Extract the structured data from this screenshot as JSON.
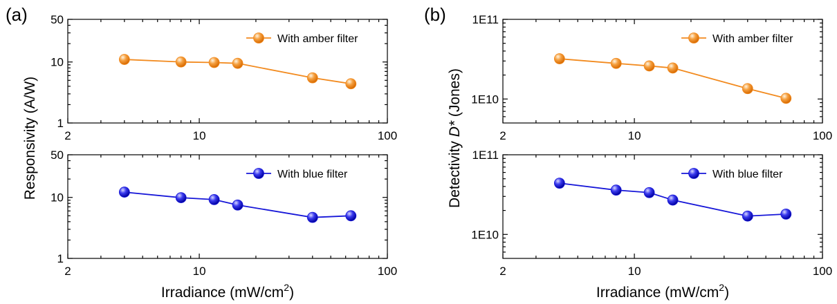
{
  "chart_data": [
    {
      "type": "scatter",
      "panel_label": "(a)",
      "ylabel": "Responsivity (A/W)",
      "xlabel": "Irradiance (mW/cm²)",
      "xlabel_main": "Irradiance (mW/cm",
      "xlabel_sup": "2",
      "xlabel_end": ")",
      "xscale": "log",
      "xlim": [
        2,
        100
      ],
      "xticks": [
        2,
        10,
        100
      ],
      "xtick_labels": [
        "2",
        "10",
        "100"
      ],
      "subplots": [
        {
          "yscale": "log",
          "ylim": [
            1,
            50
          ],
          "yticks": [
            1,
            10,
            50
          ],
          "ytick_labels": [
            "1",
            "10",
            "50"
          ],
          "legend_position": "top-right",
          "series": [
            {
              "name": "With amber filter",
              "color": "#f28a1e",
              "marker": "sphere",
              "connected": true,
              "x": [
                4,
                8,
                12,
                16,
                40,
                64
              ],
              "y": [
                11,
                10,
                9.8,
                9.5,
                5.5,
                4.4
              ]
            }
          ]
        },
        {
          "yscale": "log",
          "ylim": [
            1,
            50
          ],
          "yticks": [
            1,
            10,
            50
          ],
          "ytick_labels": [
            "1",
            "10",
            "50"
          ],
          "legend_position": "top-right",
          "series": [
            {
              "name": "With blue filter",
              "color": "#1616d8",
              "marker": "sphere",
              "connected": true,
              "x": [
                4,
                8,
                12,
                16,
                40,
                64
              ],
              "y": [
                12.2,
                9.9,
                9.2,
                7.5,
                4.7,
                5.0
              ]
            }
          ]
        }
      ]
    },
    {
      "type": "scatter",
      "panel_label": "(b)",
      "ylabel": "Detectivity D* (Jones)",
      "ylabel_pre": "Detectivity ",
      "ylabel_italic": "D*",
      "ylabel_post": " (Jones)",
      "xlabel": "Irradiance (mW/cm²)",
      "xlabel_main": "Irradiance (mW/cm",
      "xlabel_sup": "2",
      "xlabel_end": ")",
      "xscale": "log",
      "xlim": [
        2,
        100
      ],
      "xticks": [
        2,
        10,
        100
      ],
      "xtick_labels": [
        "2",
        "10",
        "100"
      ],
      "subplots": [
        {
          "yscale": "log",
          "ylim": [
            5000000000.0,
            100000000000.0
          ],
          "yticks": [
            10000000000.0,
            100000000000.0
          ],
          "ytick_labels": [
            "1E10",
            "1E11"
          ],
          "legend_position": "top-right",
          "series": [
            {
              "name": "With amber filter",
              "color": "#f28a1e",
              "marker": "sphere",
              "connected": true,
              "x": [
                4,
                8,
                12,
                16,
                40,
                64
              ],
              "y": [
                32000000000.0,
                28000000000.0,
                26000000000.0,
                24500000000.0,
                13500000000.0,
                10200000000.0
              ]
            }
          ]
        },
        {
          "yscale": "log",
          "ylim": [
            5000000000.0,
            100000000000.0
          ],
          "yticks": [
            10000000000.0,
            100000000000.0
          ],
          "ytick_labels": [
            "1E10",
            "1E11"
          ],
          "legend_position": "top-right",
          "series": [
            {
              "name": "With blue filter",
              "color": "#1616d8",
              "marker": "sphere",
              "connected": true,
              "x": [
                4,
                8,
                12,
                16,
                40,
                64
              ],
              "y": [
                44000000000.0,
                36000000000.0,
                33500000000.0,
                27000000000.0,
                17000000000.0,
                18000000000.0
              ]
            }
          ]
        }
      ]
    }
  ]
}
